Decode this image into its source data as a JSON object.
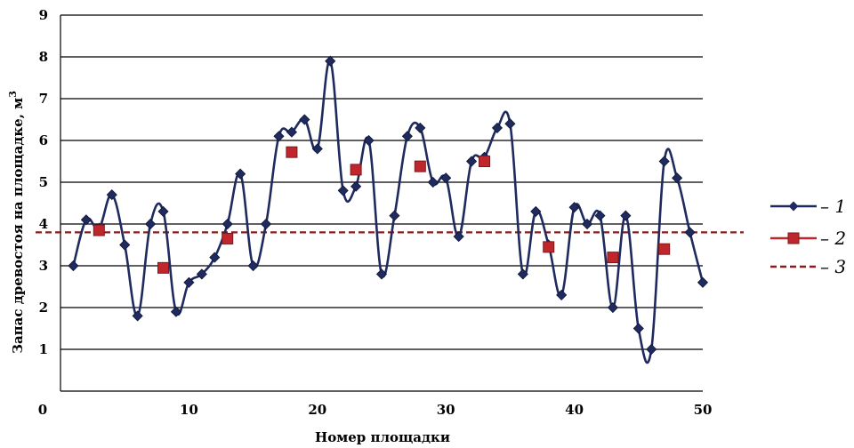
{
  "chart_data": {
    "type": "line",
    "xlabel": "Номер площадки",
    "ylabel": "Запас древостоя на площадке, м",
    "ylabel_superscript": "3",
    "xlim": [
      0,
      50
    ],
    "ylim": [
      0,
      9
    ],
    "x_ticks": [
      0,
      10,
      20,
      30,
      40,
      50
    ],
    "y_ticks": [
      1,
      2,
      3,
      4,
      5,
      6,
      7,
      8,
      9
    ],
    "grid": "horizontal",
    "legend_position": "right",
    "series": [
      {
        "name": "1",
        "legend_label": "– 1",
        "marker": "diamond",
        "color": "#1f2a5e",
        "x": [
          1,
          2,
          3,
          4,
          5,
          6,
          7,
          8,
          9,
          10,
          11,
          12,
          13,
          14,
          15,
          16,
          17,
          18,
          19,
          20,
          21,
          22,
          23,
          24,
          25,
          26,
          27,
          28,
          29,
          30,
          31,
          32,
          33,
          34,
          35,
          36,
          37,
          38,
          39,
          40,
          41,
          42,
          43,
          44,
          45,
          46,
          47,
          48,
          49,
          50
        ],
        "values": [
          3.0,
          4.1,
          3.9,
          4.7,
          3.5,
          1.8,
          4.0,
          4.3,
          1.9,
          2.6,
          2.8,
          3.2,
          4.0,
          5.2,
          3.0,
          4.0,
          6.1,
          6.2,
          6.5,
          5.8,
          7.9,
          4.8,
          4.9,
          6.0,
          2.8,
          4.2,
          6.1,
          6.3,
          5.0,
          5.1,
          3.7,
          5.5,
          5.6,
          6.3,
          6.4,
          2.8,
          4.3,
          3.5,
          2.3,
          4.4,
          4.0,
          4.2,
          2.0,
          4.2,
          1.5,
          1.0,
          5.5,
          5.1,
          3.8,
          2.6
        ]
      },
      {
        "name": "2",
        "legend_label": "– 2",
        "marker": "square",
        "color": "#c0272d",
        "x": [
          3,
          8,
          13,
          18,
          23,
          28,
          33,
          38,
          43,
          47
        ],
        "values": [
          3.85,
          2.95,
          3.65,
          5.72,
          5.3,
          5.38,
          5.5,
          3.45,
          3.2,
          3.4
        ]
      },
      {
        "name": "3",
        "legend_label": "– 3",
        "style": "dashed",
        "color": "#8b1a1a",
        "value": 3.8
      }
    ]
  },
  "colors": {
    "series1_line": "#1f2a5e",
    "series1_marker": "#1f2a5e",
    "series2_fill": "#c0272d",
    "series2_edge": "#7a1a1a",
    "series3_line": "#8b1a1a",
    "grid": "#000000"
  }
}
